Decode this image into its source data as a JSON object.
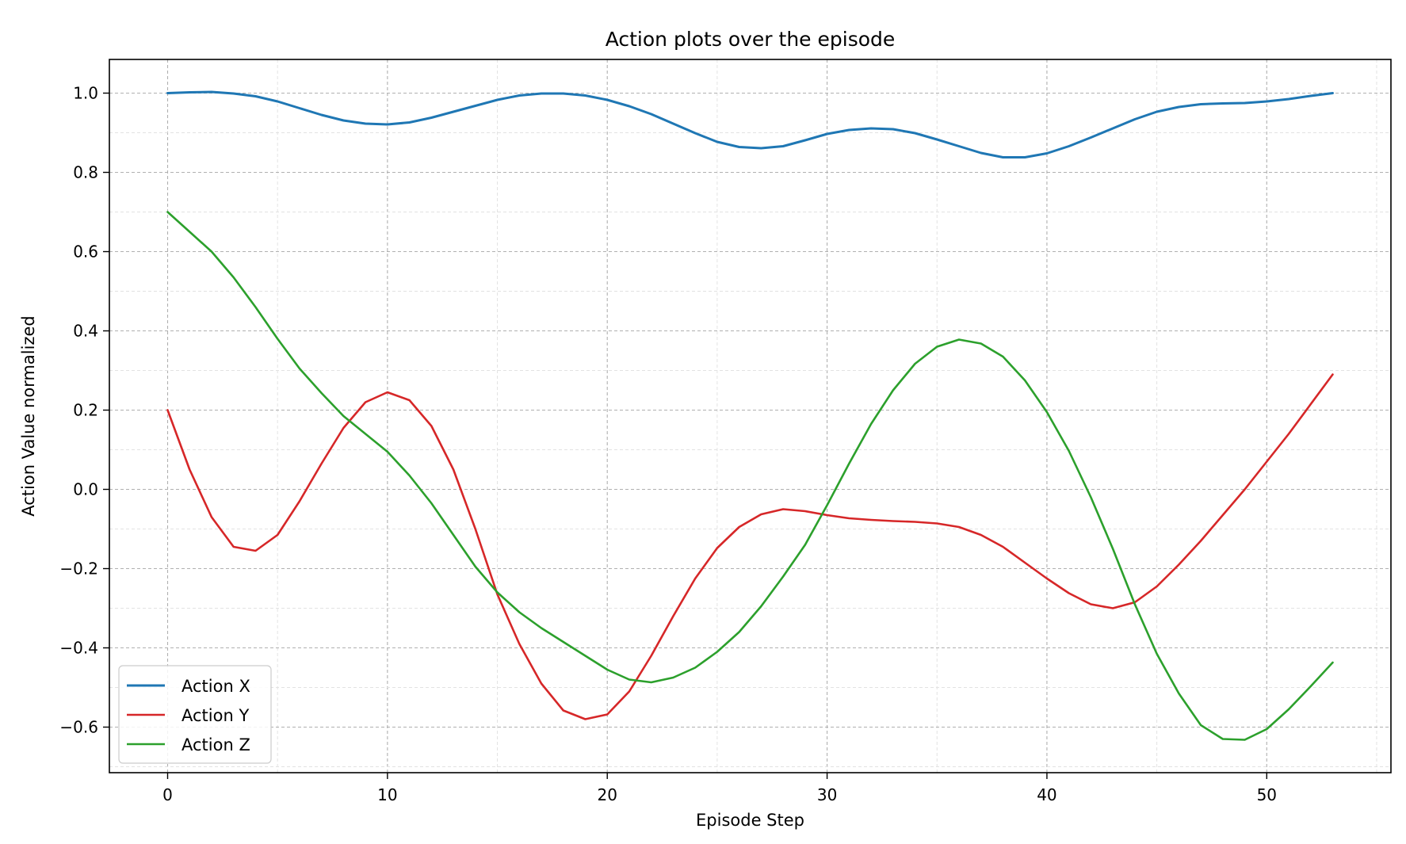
{
  "chart_data": {
    "type": "line",
    "title": "Action plots over the episode",
    "xlabel": "Episode Step",
    "ylabel": "Action Value normalized",
    "xlim": [
      -2.65,
      55.65
    ],
    "ylim": [
      -0.715,
      1.085
    ],
    "xticks": [
      0,
      10,
      20,
      30,
      40,
      50
    ],
    "yticks": [
      1.0,
      0.8,
      0.6,
      0.4,
      0.2,
      0.0,
      -0.2,
      -0.4,
      -0.6
    ],
    "ytick_labels": [
      "1.0",
      "0.8",
      "0.6",
      "0.4",
      "0.2",
      "0.0",
      "−0.2",
      "−0.4",
      "−0.6"
    ],
    "grid": true,
    "legend_position": "lower-left",
    "x": [
      0,
      1,
      2,
      3,
      4,
      5,
      6,
      7,
      8,
      9,
      10,
      11,
      12,
      13,
      14,
      15,
      16,
      17,
      18,
      19,
      20,
      21,
      22,
      23,
      24,
      25,
      26,
      27,
      28,
      29,
      30,
      31,
      32,
      33,
      34,
      35,
      36,
      37,
      38,
      39,
      40,
      41,
      42,
      43,
      44,
      45,
      46,
      47,
      48,
      49,
      50,
      51,
      52,
      53
    ],
    "series": [
      {
        "name": "Action X",
        "color": "#1f77b4",
        "width": 3,
        "values": [
          1.0,
          1.002,
          1.003,
          0.999,
          0.992,
          0.979,
          0.962,
          0.945,
          0.931,
          0.923,
          0.921,
          0.926,
          0.938,
          0.953,
          0.968,
          0.983,
          0.994,
          0.999,
          0.999,
          0.994,
          0.983,
          0.967,
          0.947,
          0.923,
          0.899,
          0.877,
          0.864,
          0.861,
          0.866,
          0.881,
          0.897,
          0.907,
          0.911,
          0.909,
          0.899,
          0.883,
          0.866,
          0.849,
          0.838,
          0.838,
          0.848,
          0.866,
          0.888,
          0.911,
          0.934,
          0.953,
          0.965,
          0.972,
          0.974,
          0.975,
          0.979,
          0.985,
          0.993,
          1.0
        ]
      },
      {
        "name": "Action Y",
        "color": "#d62728",
        "width": 2.6,
        "values": [
          0.2,
          0.05,
          -0.07,
          -0.145,
          -0.155,
          -0.115,
          -0.03,
          0.065,
          0.155,
          0.22,
          0.245,
          0.225,
          0.16,
          0.05,
          -0.1,
          -0.265,
          -0.39,
          -0.49,
          -0.558,
          -0.58,
          -0.568,
          -0.51,
          -0.42,
          -0.32,
          -0.225,
          -0.148,
          -0.095,
          -0.063,
          -0.05,
          -0.055,
          -0.065,
          -0.073,
          -0.077,
          -0.08,
          -0.082,
          -0.086,
          -0.095,
          -0.115,
          -0.145,
          -0.185,
          -0.225,
          -0.262,
          -0.29,
          -0.3,
          -0.285,
          -0.245,
          -0.19,
          -0.13,
          -0.065,
          0.0,
          0.07,
          0.14,
          0.215,
          0.29
        ]
      },
      {
        "name": "Action Z",
        "color": "#2ca02c",
        "width": 2.6,
        "values": [
          0.7,
          0.65,
          0.6,
          0.535,
          0.46,
          0.38,
          0.305,
          0.243,
          0.185,
          0.14,
          0.095,
          0.035,
          -0.035,
          -0.115,
          -0.195,
          -0.26,
          -0.31,
          -0.35,
          -0.385,
          -0.42,
          -0.455,
          -0.48,
          -0.487,
          -0.475,
          -0.45,
          -0.41,
          -0.36,
          -0.295,
          -0.22,
          -0.14,
          -0.04,
          0.065,
          0.165,
          0.25,
          0.317,
          0.36,
          0.378,
          0.368,
          0.335,
          0.275,
          0.195,
          0.097,
          -0.02,
          -0.15,
          -0.29,
          -0.415,
          -0.515,
          -0.595,
          -0.63,
          -0.632,
          -0.605,
          -0.555,
          -0.497,
          -0.437
        ]
      }
    ]
  }
}
